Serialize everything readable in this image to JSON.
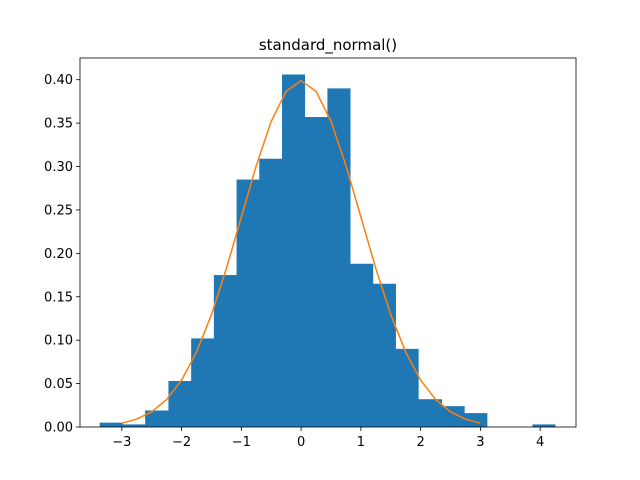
{
  "chart_data": {
    "type": "bar",
    "title": "standard_normal()",
    "xlabel": "",
    "ylabel": "",
    "xlim": [
      -3.7,
      4.6
    ],
    "ylim": [
      0,
      0.425
    ],
    "xticks": [
      -3,
      -2,
      -1,
      0,
      1,
      2,
      3,
      4
    ],
    "xtick_labels": [
      "−3",
      "−2",
      "−1",
      "0",
      "1",
      "2",
      "3",
      "4"
    ],
    "yticks": [
      0.0,
      0.05,
      0.1,
      0.15,
      0.2,
      0.25,
      0.3,
      0.35,
      0.4
    ],
    "ytick_labels": [
      "0.00",
      "0.05",
      "0.10",
      "0.15",
      "0.20",
      "0.25",
      "0.30",
      "0.35",
      "0.40"
    ],
    "grid": false,
    "colors": {
      "bars": "#1f77b4",
      "curve": "#ff7f0e"
    },
    "histogram": {
      "bin_edges": [
        -3.37,
        -2.99,
        -2.61,
        -2.22,
        -1.84,
        -1.46,
        -1.08,
        -0.7,
        -0.32,
        0.06,
        0.44,
        0.82,
        1.2,
        1.58,
        1.96,
        2.35,
        2.73,
        3.11,
        3.49,
        3.87,
        4.25
      ],
      "densities": [
        0.005,
        0.003,
        0.019,
        0.053,
        0.102,
        0.175,
        0.285,
        0.309,
        0.406,
        0.357,
        0.39,
        0.188,
        0.165,
        0.09,
        0.032,
        0.024,
        0.016,
        0.0,
        0.0,
        0.003
      ]
    },
    "curve": {
      "name": "",
      "x": [
        -3.0,
        -2.75,
        -2.5,
        -2.25,
        -2.0,
        -1.75,
        -1.5,
        -1.25,
        -1.0,
        -0.75,
        -0.5,
        -0.25,
        0.0,
        0.25,
        0.5,
        0.75,
        1.0,
        1.25,
        1.5,
        1.75,
        2.0,
        2.25,
        2.5,
        2.75,
        3.0
      ],
      "y": [
        0.0044,
        0.0091,
        0.0175,
        0.0317,
        0.054,
        0.0863,
        0.1295,
        0.1826,
        0.242,
        0.3011,
        0.3521,
        0.3867,
        0.3989,
        0.3867,
        0.3521,
        0.3011,
        0.242,
        0.1826,
        0.1295,
        0.0863,
        0.054,
        0.0317,
        0.0175,
        0.0091,
        0.0044
      ]
    }
  }
}
